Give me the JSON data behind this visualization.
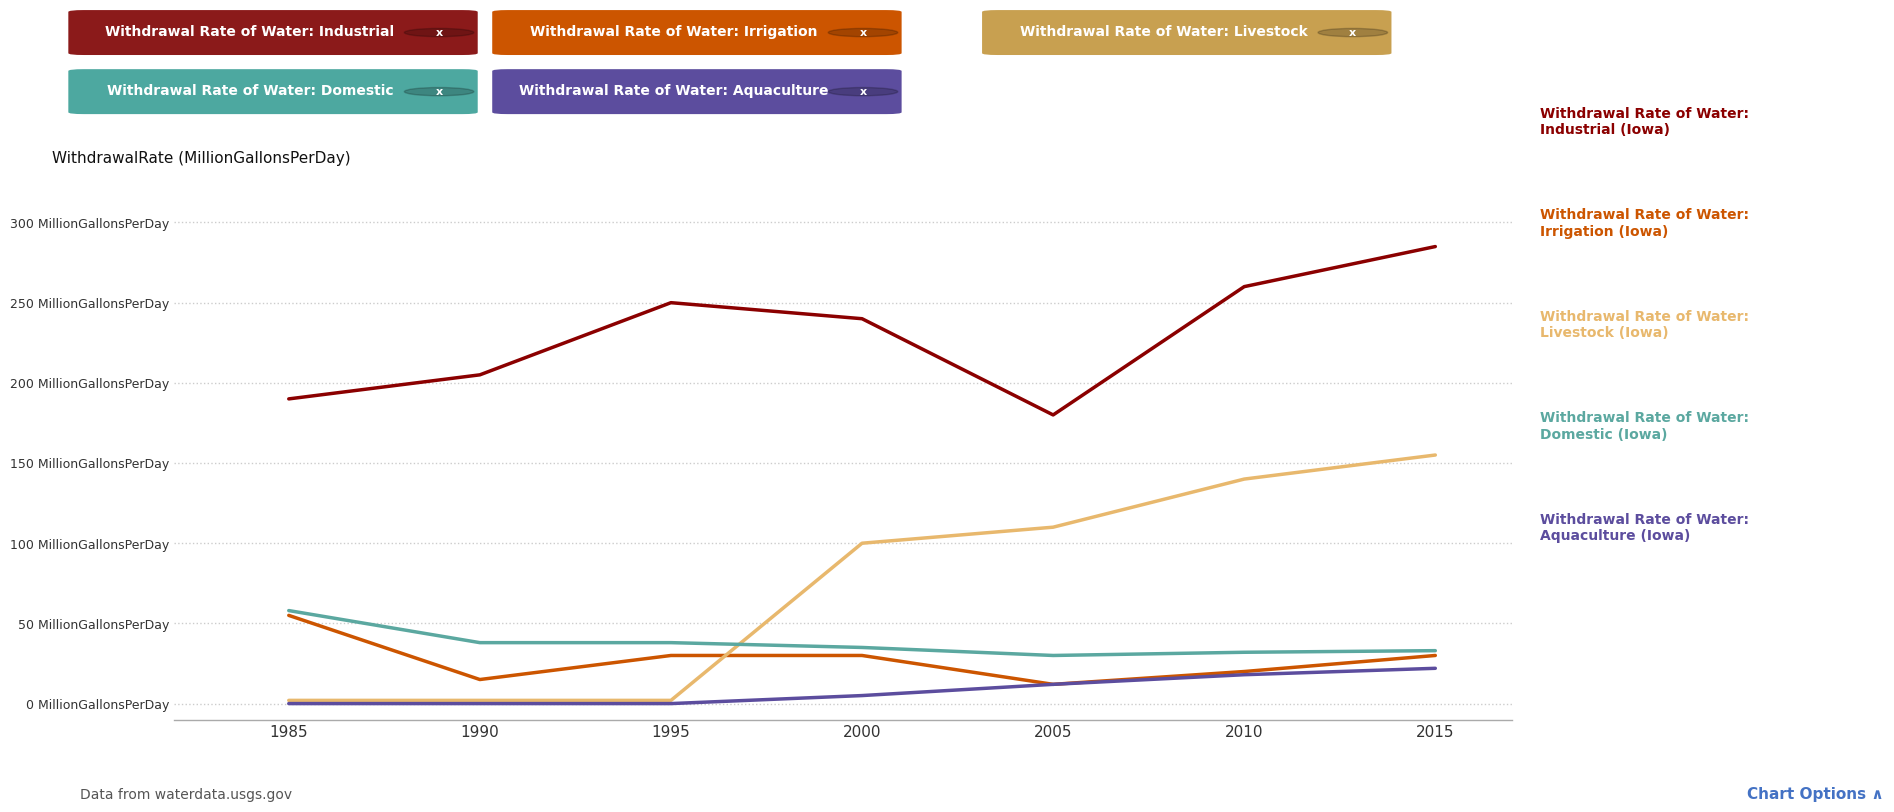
{
  "years": [
    1985,
    1990,
    1995,
    2000,
    2005,
    2010,
    2015
  ],
  "series": {
    "industrial": {
      "values": [
        190,
        205,
        250,
        240,
        180,
        260,
        285
      ],
      "color": "#8B0000",
      "label": "Withdrawal Rate of Water:\nIndustrial (Iowa)"
    },
    "irrigation": {
      "values": [
        55,
        15,
        30,
        30,
        12,
        20,
        30
      ],
      "color": "#CC5500",
      "label": "Withdrawal Rate of Water:\nIrrigation (Iowa)"
    },
    "livestock": {
      "values": [
        2,
        2,
        2,
        100,
        110,
        140,
        155
      ],
      "color": "#E8B86D",
      "label": "Withdrawal Rate of Water:\nLivestock (Iowa)"
    },
    "domestic": {
      "values": [
        58,
        38,
        38,
        35,
        30,
        32,
        33
      ],
      "color": "#5BA8A0",
      "label": "Withdrawal Rate of Water:\nDomestic (Iowa)"
    },
    "aquaculture": {
      "values": [
        0,
        0,
        0,
        5,
        12,
        18,
        22
      ],
      "color": "#5C4D9E",
      "label": "Withdrawal Rate of Water:\nAquaculture (Iowa)"
    }
  },
  "ylabel": "WithdrawalRate (MillionGallonsPerDay)",
  "ytick_labels": [
    "0 MillionGallonsPerDay",
    "50 MillionGallonsPerDay",
    "100 MillionGallonsPerDay",
    "150 MillionGallonsPerDay",
    "200 MillionGallonsPerDay",
    "250 MillionGallonsPerDay",
    "300 MillionGallonsPerDay"
  ],
  "ytick_values": [
    0,
    50,
    100,
    150,
    200,
    250,
    300
  ],
  "ylim": [
    -10,
    320
  ],
  "xlim": [
    1982,
    2017
  ],
  "xtick_values": [
    1985,
    1990,
    1995,
    2000,
    2005,
    2010,
    2015
  ],
  "background_color": "#ffffff",
  "grid_color": "#cccccc",
  "footer_text": "Data from waterdata.usgs.gov",
  "chart_options_text": "Chart Options ∧",
  "badge_info": [
    {
      "key": "industrial",
      "label": "Withdrawal Rate of Water: Industrial",
      "bx": 0.02,
      "by": 0.935,
      "color": "#8B1A1A"
    },
    {
      "key": "irrigation",
      "label": "Withdrawal Rate of Water: Irrigation",
      "bx": 0.245,
      "by": 0.935,
      "color": "#CC5500"
    },
    {
      "key": "livestock",
      "label": "Withdrawal Rate of Water: Livestock",
      "bx": 0.505,
      "by": 0.935,
      "color": "#C8A050"
    },
    {
      "key": "domestic",
      "label": "Withdrawal Rate of Water: Domestic",
      "bx": 0.02,
      "by": 0.868,
      "color": "#4DA8A0"
    },
    {
      "key": "aquaculture",
      "label": "Withdrawal Rate of Water: Aquaculture",
      "bx": 0.245,
      "by": 0.868,
      "color": "#5C4D9E"
    }
  ],
  "legend_keys": [
    "industrial",
    "irrigation",
    "livestock",
    "domestic",
    "aquaculture"
  ]
}
